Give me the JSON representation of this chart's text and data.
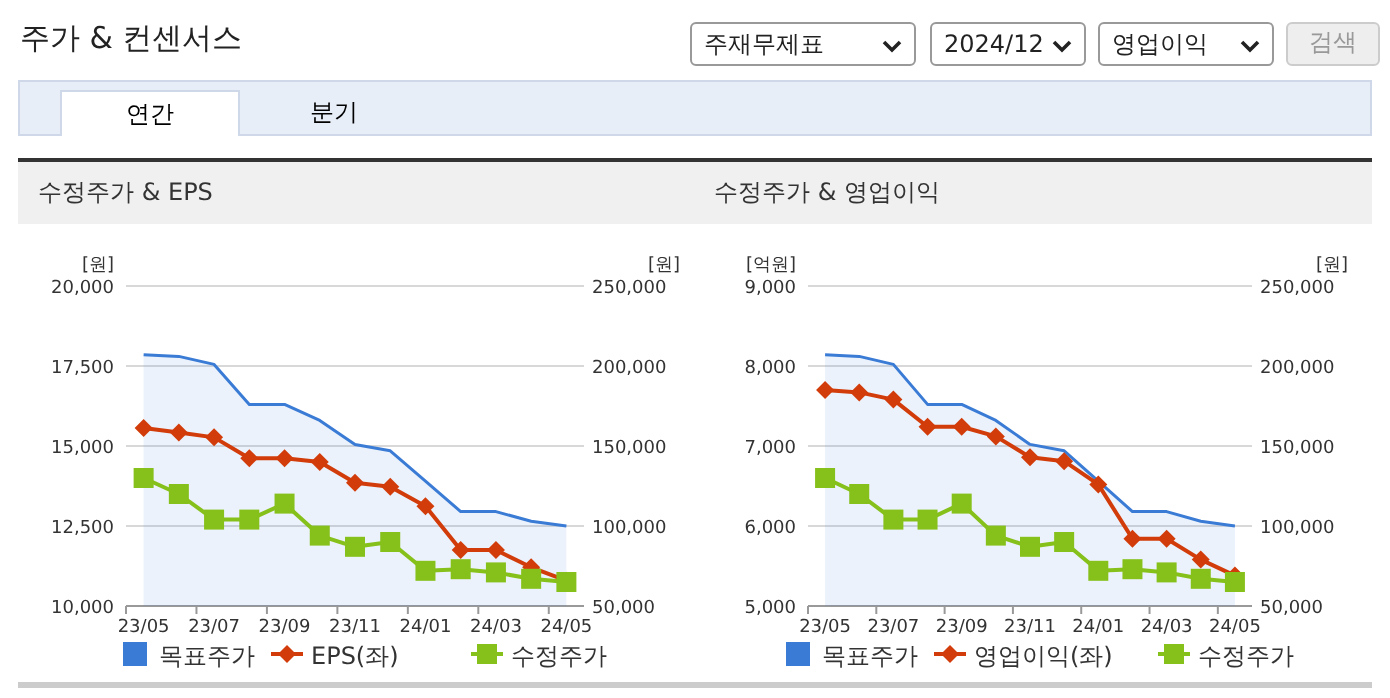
{
  "chart_data": [
    {
      "type": "other",
      "title": "주가 & 컨센서스",
      "annotations": [
        "주재무제표",
        "2024/12",
        "영업이익",
        "검색",
        "연간",
        "분기"
      ]
    },
    {
      "type": "line",
      "title": "수정주가 & EPS",
      "ylabel": "[원]",
      "y2label": "[원]",
      "categories": [
        "23/05",
        null,
        "23/07",
        null,
        "23/09",
        null,
        "23/11",
        null,
        "24/01",
        null,
        "24/03",
        null,
        "24/05"
      ],
      "ylim": [
        10000,
        20000
      ],
      "yticks": [
        {
          "value": 10000,
          "label": "10,000"
        },
        {
          "value": 12500,
          "label": "12,500"
        },
        {
          "value": 15000,
          "label": "15,000"
        },
        {
          "value": 17500,
          "label": "17,500"
        },
        {
          "value": 20000,
          "label": "20,000"
        }
      ],
      "y2lim": [
        50000,
        250000
      ],
      "y2ticks": [
        {
          "value": 50000,
          "label": "50,000"
        },
        {
          "value": 100000,
          "label": "100,000"
        },
        {
          "value": 150000,
          "label": "150,000"
        },
        {
          "value": 200000,
          "label": "200,000"
        },
        {
          "value": 250000,
          "label": "250,000"
        }
      ],
      "grid": "y",
      "legend": "bottom",
      "series": [
        {
          "name": "목표주가",
          "type": "area",
          "axis": "y2",
          "color": "#3a7bd5",
          "values": [
            207000,
            206000,
            201000,
            176000,
            176000,
            166000,
            151000,
            147000,
            128000,
            109000,
            109000,
            103000,
            100000
          ]
        },
        {
          "name": "EPS(좌)",
          "type": "line",
          "marker": "diamond",
          "color": "#d23c0a",
          "values": [
            15560,
            15420,
            15270,
            14620,
            14620,
            14500,
            13850,
            13730,
            13120,
            11750,
            11750,
            11210,
            10790
          ]
        },
        {
          "name": "수정주가",
          "type": "line",
          "axis": "y2",
          "marker": "square",
          "color": "#86c01a",
          "values": [
            130000,
            120000,
            104000,
            104000,
            114000,
            94000,
            87000,
            90000,
            72000,
            73000,
            71000,
            67000,
            65000
          ]
        }
      ]
    },
    {
      "type": "line",
      "title": "수정주가 & 영업이익",
      "ylabel": "[억원]",
      "y2label": "[원]",
      "categories": [
        "23/05",
        null,
        "23/07",
        null,
        "23/09",
        null,
        "23/11",
        null,
        "24/01",
        null,
        "24/03",
        null,
        "24/05"
      ],
      "ylim": [
        5000,
        9000
      ],
      "yticks": [
        {
          "value": 5000,
          "label": "5,000"
        },
        {
          "value": 6000,
          "label": "6,000"
        },
        {
          "value": 7000,
          "label": "7,000"
        },
        {
          "value": 8000,
          "label": "8,000"
        },
        {
          "value": 9000,
          "label": "9,000"
        }
      ],
      "y2lim": [
        50000,
        250000
      ],
      "y2ticks": [
        {
          "value": 50000,
          "label": "50,000"
        },
        {
          "value": 100000,
          "label": "100,000"
        },
        {
          "value": 150000,
          "label": "150,000"
        },
        {
          "value": 200000,
          "label": "200,000"
        },
        {
          "value": 250000,
          "label": "250,000"
        }
      ],
      "grid": "y",
      "legend": "bottom",
      "series": [
        {
          "name": "목표주가",
          "type": "area",
          "axis": "y2",
          "color": "#3a7bd5",
          "values": [
            207000,
            206000,
            201000,
            176000,
            176000,
            166000,
            151000,
            147000,
            128000,
            109000,
            109000,
            103000,
            100000
          ]
        },
        {
          "name": "영업이익(좌)",
          "type": "line",
          "marker": "diamond",
          "color": "#d23c0a",
          "values": [
            7700,
            7670,
            7580,
            7240,
            7240,
            7120,
            6860,
            6810,
            6520,
            5840,
            5840,
            5580,
            5380
          ]
        },
        {
          "name": "수정주가",
          "type": "line",
          "axis": "y2",
          "marker": "square",
          "color": "#86c01a",
          "values": [
            130000,
            120000,
            104000,
            104000,
            114000,
            94000,
            87000,
            90000,
            72000,
            73000,
            71000,
            67000,
            65000
          ]
        }
      ]
    }
  ]
}
